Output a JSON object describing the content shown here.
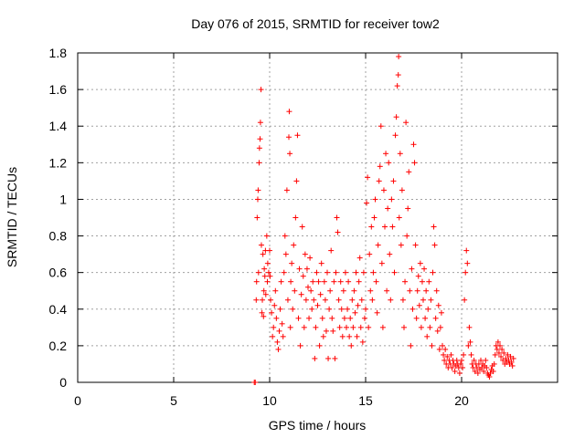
{
  "chart_data": {
    "type": "scatter",
    "title": "Day 076 of 2015, SRMTID for receiver tow2",
    "xlabel": "GPS time / hours",
    "ylabel": "SRMTID / TECUs",
    "xlim": [
      0,
      25
    ],
    "ylim": [
      0,
      1.8
    ],
    "xticks": [
      0,
      5,
      10,
      15,
      20
    ],
    "xtick_labels": [
      "0",
      "5",
      "10",
      "15",
      "20"
    ],
    "yticks": [
      0,
      0.2,
      0.4,
      0.6,
      0.8,
      1,
      1.2,
      1.4,
      1.6,
      1.8
    ],
    "ytick_labels": [
      "0",
      "0.2",
      "0.4",
      "0.6",
      "0.8",
      "1",
      "1.2",
      "1.4",
      "1.6",
      "1.8"
    ],
    "grid": true,
    "marker": "+",
    "series": [
      {
        "name": "tow2",
        "color": "#ff0000",
        "points": [
          [
            9.2,
            0.0
          ],
          [
            9.25,
            0.0
          ],
          [
            9.3,
            0.45
          ],
          [
            9.32,
            0.55
          ],
          [
            9.35,
            0.9
          ],
          [
            9.38,
            1.0
          ],
          [
            9.4,
            1.05
          ],
          [
            9.42,
            0.6
          ],
          [
            9.45,
            1.2
          ],
          [
            9.47,
            1.28
          ],
          [
            9.5,
            1.33
          ],
          [
            9.52,
            1.42
          ],
          [
            9.55,
            1.6
          ],
          [
            9.57,
            0.75
          ],
          [
            9.6,
            0.38
          ],
          [
            9.62,
            0.45
          ],
          [
            9.65,
            0.7
          ],
          [
            9.68,
            0.36
          ],
          [
            9.7,
            0.5
          ],
          [
            9.72,
            0.62
          ],
          [
            9.75,
            0.58
          ],
          [
            9.78,
            0.72
          ],
          [
            9.8,
            0.48
          ],
          [
            9.85,
            0.8
          ],
          [
            9.88,
            0.55
          ],
          [
            9.9,
            0.65
          ],
          [
            9.95,
            0.6
          ],
          [
            10.0,
            0.72
          ],
          [
            10.02,
            0.58
          ],
          [
            10.05,
            0.45
          ],
          [
            10.1,
            0.38
          ],
          [
            10.15,
            0.25
          ],
          [
            10.2,
            0.3
          ],
          [
            10.25,
            0.42
          ],
          [
            10.3,
            0.5
          ],
          [
            10.35,
            0.35
          ],
          [
            10.4,
            0.22
          ],
          [
            10.45,
            0.18
          ],
          [
            10.5,
            0.28
          ],
          [
            10.55,
            0.4
          ],
          [
            10.6,
            0.55
          ],
          [
            10.65,
            0.32
          ],
          [
            10.7,
            0.25
          ],
          [
            10.75,
            0.6
          ],
          [
            10.8,
            0.8
          ],
          [
            10.85,
            0.7
          ],
          [
            10.9,
            1.05
          ],
          [
            10.95,
            0.45
          ],
          [
            11.0,
            1.34
          ],
          [
            11.02,
            1.48
          ],
          [
            11.05,
            1.25
          ],
          [
            11.08,
            0.3
          ],
          [
            11.1,
            0.55
          ],
          [
            11.15,
            0.65
          ],
          [
            11.2,
            0.4
          ],
          [
            11.25,
            0.75
          ],
          [
            11.3,
            0.5
          ],
          [
            11.35,
            0.9
          ],
          [
            11.4,
            1.1
          ],
          [
            11.45,
            1.35
          ],
          [
            11.5,
            0.35
          ],
          [
            11.55,
            0.62
          ],
          [
            11.6,
            0.2
          ],
          [
            11.65,
            0.48
          ],
          [
            11.7,
            0.85
          ],
          [
            11.75,
            0.58
          ],
          [
            11.8,
            0.3
          ],
          [
            11.85,
            0.7
          ],
          [
            11.9,
            0.45
          ],
          [
            11.95,
            0.62
          ],
          [
            12.0,
            0.52
          ],
          [
            12.05,
            0.35
          ],
          [
            12.1,
            0.68
          ],
          [
            12.15,
            0.5
          ],
          [
            12.2,
            0.4
          ],
          [
            12.25,
            0.55
          ],
          [
            12.3,
            0.45
          ],
          [
            12.35,
            0.13
          ],
          [
            12.4,
            0.3
          ],
          [
            12.45,
            0.6
          ],
          [
            12.5,
            0.42
          ],
          [
            12.55,
            0.55
          ],
          [
            12.6,
            0.2
          ],
          [
            12.65,
            0.48
          ],
          [
            12.7,
            0.65
          ],
          [
            12.75,
            0.35
          ],
          [
            12.8,
            0.25
          ],
          [
            12.85,
            0.55
          ],
          [
            12.9,
            0.45
          ],
          [
            12.95,
            0.28
          ],
          [
            13.0,
            0.6
          ],
          [
            13.05,
            0.13
          ],
          [
            13.1,
            0.4
          ],
          [
            13.15,
            0.5
          ],
          [
            13.2,
            0.72
          ],
          [
            13.25,
            0.35
          ],
          [
            13.3,
            0.28
          ],
          [
            13.35,
            0.55
          ],
          [
            13.4,
            0.13
          ],
          [
            13.45,
            0.6
          ],
          [
            13.5,
            0.9
          ],
          [
            13.55,
            0.82
          ],
          [
            13.6,
            0.45
          ],
          [
            13.65,
            0.3
          ],
          [
            13.7,
            0.55
          ],
          [
            13.75,
            0.4
          ],
          [
            13.8,
            0.25
          ],
          [
            13.85,
            0.5
          ],
          [
            13.9,
            0.35
          ],
          [
            13.95,
            0.6
          ],
          [
            14.0,
            0.3
          ],
          [
            14.05,
            0.4
          ],
          [
            14.1,
            0.55
          ],
          [
            14.15,
            0.25
          ],
          [
            14.2,
            0.35
          ],
          [
            14.25,
            0.2
          ],
          [
            14.3,
            0.45
          ],
          [
            14.35,
            0.3
          ],
          [
            14.4,
            0.5
          ],
          [
            14.45,
            0.38
          ],
          [
            14.5,
            0.6
          ],
          [
            14.55,
            0.25
          ],
          [
            14.6,
            0.42
          ],
          [
            14.65,
            0.55
          ],
          [
            14.7,
            0.68
          ],
          [
            14.75,
            0.3
          ],
          [
            14.8,
            0.45
          ],
          [
            14.85,
            0.22
          ],
          [
            14.9,
            0.6
          ],
          [
            14.95,
            0.35
          ],
          [
            15.0,
            0.4
          ],
          [
            15.05,
            0.98
          ],
          [
            15.1,
            1.12
          ],
          [
            15.15,
            0.3
          ],
          [
            15.2,
            0.7
          ],
          [
            15.25,
            0.5
          ],
          [
            15.3,
            0.85
          ],
          [
            15.35,
            0.45
          ],
          [
            15.4,
            0.6
          ],
          [
            15.45,
            0.9
          ],
          [
            15.5,
            1.0
          ],
          [
            15.55,
            0.55
          ],
          [
            15.6,
            0.38
          ],
          [
            15.65,
            0.75
          ],
          [
            15.7,
            1.1
          ],
          [
            15.75,
            1.18
          ],
          [
            15.8,
            1.4
          ],
          [
            15.85,
            0.65
          ],
          [
            15.9,
            0.3
          ],
          [
            15.95,
            1.05
          ],
          [
            16.0,
            0.85
          ],
          [
            16.05,
            1.25
          ],
          [
            16.1,
            0.5
          ],
          [
            16.15,
            0.95
          ],
          [
            16.2,
            1.2
          ],
          [
            16.25,
            0.7
          ],
          [
            16.3,
            0.45
          ],
          [
            16.35,
            1.0
          ],
          [
            16.4,
            0.85
          ],
          [
            16.45,
            1.1
          ],
          [
            16.5,
            0.6
          ],
          [
            16.55,
            1.35
          ],
          [
            16.6,
            1.45
          ],
          [
            16.65,
            1.62
          ],
          [
            16.7,
            1.68
          ],
          [
            16.72,
            1.78
          ],
          [
            16.75,
            0.9
          ],
          [
            16.8,
            1.25
          ],
          [
            16.85,
            0.75
          ],
          [
            16.9,
            1.05
          ],
          [
            16.95,
            0.45
          ],
          [
            17.0,
            0.3
          ],
          [
            17.05,
            0.55
          ],
          [
            17.1,
            1.42
          ],
          [
            17.15,
            0.8
          ],
          [
            17.2,
            0.95
          ],
          [
            17.25,
            1.15
          ],
          [
            17.3,
            0.5
          ],
          [
            17.35,
            0.2
          ],
          [
            17.4,
            0.62
          ],
          [
            17.45,
            0.4
          ],
          [
            17.5,
            1.3
          ],
          [
            17.55,
            1.2
          ],
          [
            17.6,
            0.75
          ],
          [
            17.65,
            0.35
          ],
          [
            17.7,
            0.5
          ],
          [
            17.75,
            0.58
          ],
          [
            17.8,
            0.42
          ],
          [
            17.85,
            0.65
          ],
          [
            17.9,
            0.3
          ],
          [
            17.95,
            0.55
          ],
          [
            18.0,
            0.45
          ],
          [
            18.05,
            0.62
          ],
          [
            18.1,
            0.35
          ],
          [
            18.15,
            0.5
          ],
          [
            18.2,
            0.25
          ],
          [
            18.25,
            0.4
          ],
          [
            18.3,
            0.55
          ],
          [
            18.35,
            0.3
          ],
          [
            18.4,
            0.45
          ],
          [
            18.45,
            0.2
          ],
          [
            18.5,
            0.6
          ],
          [
            18.55,
            0.85
          ],
          [
            18.6,
            0.75
          ],
          [
            18.65,
            0.35
          ],
          [
            18.7,
            0.5
          ],
          [
            18.75,
            0.28
          ],
          [
            18.8,
            0.42
          ],
          [
            18.85,
            0.18
          ],
          [
            18.9,
            0.3
          ],
          [
            18.95,
            0.38
          ],
          [
            19.0,
            0.2
          ],
          [
            19.05,
            0.15
          ],
          [
            19.1,
            0.12
          ],
          [
            19.15,
            0.18
          ],
          [
            19.2,
            0.1
          ],
          [
            19.25,
            0.14
          ],
          [
            19.3,
            0.08
          ],
          [
            19.35,
            0.12
          ],
          [
            19.4,
            0.1
          ],
          [
            19.45,
            0.15
          ],
          [
            19.5,
            0.08
          ],
          [
            19.55,
            0.12
          ],
          [
            19.6,
            0.1
          ],
          [
            19.65,
            0.06
          ],
          [
            19.7,
            0.09
          ],
          [
            19.75,
            0.12
          ],
          [
            19.8,
            0.1
          ],
          [
            19.85,
            0.08
          ],
          [
            19.9,
            0.05
          ],
          [
            19.95,
            0.1
          ],
          [
            20.0,
            0.12
          ],
          [
            20.05,
            0.08
          ],
          [
            20.1,
            0.15
          ],
          [
            20.15,
            0.45
          ],
          [
            20.2,
            0.6
          ],
          [
            20.25,
            0.72
          ],
          [
            20.3,
            0.65
          ],
          [
            20.35,
            0.2
          ],
          [
            20.4,
            0.3
          ],
          [
            20.45,
            0.22
          ],
          [
            20.5,
            0.15
          ],
          [
            20.55,
            0.1
          ],
          [
            20.6,
            0.08
          ],
          [
            20.65,
            0.12
          ],
          [
            20.7,
            0.06
          ],
          [
            20.75,
            0.1
          ],
          [
            20.8,
            0.08
          ],
          [
            20.85,
            0.05
          ],
          [
            20.9,
            0.1
          ],
          [
            20.95,
            0.07
          ],
          [
            21.0,
            0.12
          ],
          [
            21.05,
            0.08
          ],
          [
            21.1,
            0.1
          ],
          [
            21.15,
            0.06
          ],
          [
            21.2,
            0.09
          ],
          [
            21.25,
            0.12
          ],
          [
            21.3,
            0.08
          ],
          [
            21.35,
            0.05
          ],
          [
            21.4,
            0.04
          ],
          [
            21.45,
            0.03
          ],
          [
            21.5,
            0.05
          ],
          [
            21.55,
            0.07
          ],
          [
            21.6,
            0.09
          ],
          [
            21.65,
            0.06
          ],
          [
            21.7,
            0.1
          ],
          [
            21.75,
            0.15
          ],
          [
            21.8,
            0.2
          ],
          [
            21.85,
            0.18
          ],
          [
            21.9,
            0.22
          ],
          [
            21.95,
            0.16
          ],
          [
            22.0,
            0.2
          ],
          [
            22.05,
            0.14
          ],
          [
            22.1,
            0.18
          ],
          [
            22.15,
            0.12
          ],
          [
            22.2,
            0.16
          ],
          [
            22.25,
            0.1
          ],
          [
            22.3,
            0.13
          ],
          [
            22.35,
            0.11
          ],
          [
            22.4,
            0.15
          ],
          [
            22.45,
            0.12
          ],
          [
            22.5,
            0.1
          ],
          [
            22.55,
            0.14
          ],
          [
            22.6,
            0.11
          ],
          [
            22.65,
            0.09
          ],
          [
            22.7,
            0.13
          ]
        ]
      }
    ]
  }
}
